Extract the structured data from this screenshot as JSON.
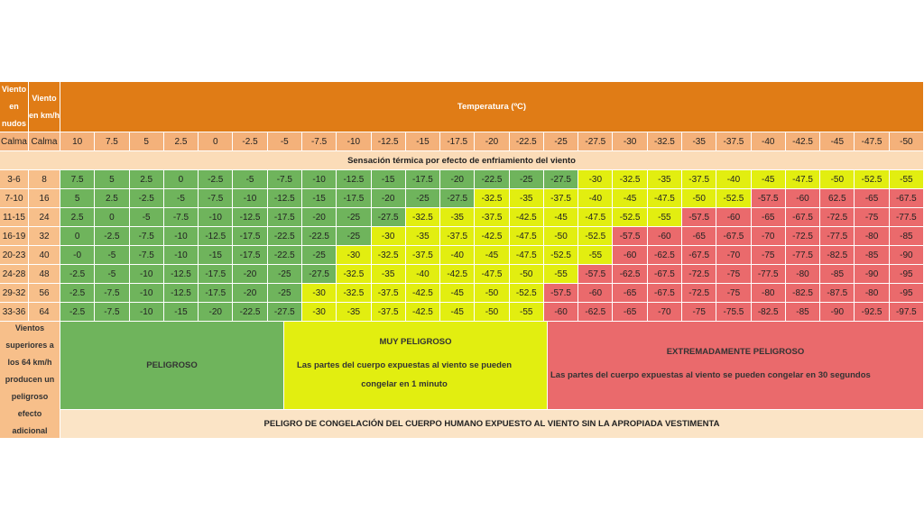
{
  "headers": {
    "knots": "Viento en nudos",
    "kmh": "Viento en km/h",
    "temperature": "Temperatura (ºC)",
    "subtitle": "Sensación térmica por efecto de enfriamiento del viento"
  },
  "calm": {
    "knots": "Calma",
    "kmh": "Calma"
  },
  "temperatures": [
    "10",
    "7.5",
    "5",
    "2.5",
    "0",
    "-2.5",
    "-5",
    "-7.5",
    "-10",
    "-12.5",
    "-15",
    "-17.5",
    "-20",
    "-22.5",
    "-25",
    "-27.5",
    "-30",
    "-32.5",
    "-35",
    "-37.5",
    "-40",
    "-42.5",
    "-45",
    "-47.5",
    "-50"
  ],
  "rows": [
    {
      "knots": "3-6",
      "kmh": "8",
      "values": [
        "7.5",
        "5",
        "2.5",
        "0",
        "-2.5",
        "-5",
        "-7.5",
        "-10",
        "-12.5",
        "-15",
        "-17.5",
        "-20",
        "-22.5",
        "-25",
        "-27.5",
        "-30",
        "-32.5",
        "-35",
        "-37.5",
        "-40",
        "-45",
        "-47.5",
        "-50",
        "-52.5",
        "-55"
      ],
      "levels": [
        1,
        1,
        1,
        1,
        1,
        1,
        1,
        1,
        1,
        1,
        1,
        1,
        1,
        1,
        1,
        2,
        2,
        2,
        2,
        2,
        2,
        2,
        2,
        2,
        2
      ]
    },
    {
      "knots": "7-10",
      "kmh": "16",
      "values": [
        "5",
        "2.5",
        "-2.5",
        "-5",
        "-7.5",
        "-10",
        "-12.5",
        "-15",
        "-17.5",
        "-20",
        "-25",
        "-27.5",
        "-32.5",
        "-35",
        "-37.5",
        "-40",
        "-45",
        "-47.5",
        "-50",
        "-52.5",
        "-57.5",
        "-60",
        "62.5",
        "-65",
        "-67.5"
      ],
      "levels": [
        1,
        1,
        1,
        1,
        1,
        1,
        1,
        1,
        1,
        1,
        1,
        1,
        2,
        2,
        2,
        2,
        2,
        2,
        2,
        2,
        3,
        3,
        3,
        3,
        3
      ]
    },
    {
      "knots": "11-15",
      "kmh": "24",
      "values": [
        "2.5",
        "0",
        "-5",
        "-7.5",
        "-10",
        "-12.5",
        "-17.5",
        "-20",
        "-25",
        "-27.5",
        "-32.5",
        "-35",
        "-37.5",
        "-42.5",
        "-45",
        "-47.5",
        "-52.5",
        "-55",
        "-57.5",
        "-60",
        "-65",
        "-67.5",
        "-72.5",
        "-75",
        "-77.5"
      ],
      "levels": [
        1,
        1,
        1,
        1,
        1,
        1,
        1,
        1,
        1,
        1,
        2,
        2,
        2,
        2,
        2,
        2,
        2,
        2,
        3,
        3,
        3,
        3,
        3,
        3,
        3
      ]
    },
    {
      "knots": "16-19",
      "kmh": "32",
      "values": [
        "0",
        "-2.5",
        "-7.5",
        "-10",
        "-12.5",
        "-17.5",
        "-22.5",
        "-22.5",
        "-25",
        "-30",
        "-35",
        "-37.5",
        "-42.5",
        "-47.5",
        "-50",
        "-52.5",
        "-57.5",
        "-60",
        "-65",
        "-67.5",
        "-70",
        "-72.5",
        "-77.5",
        "-80",
        "-85"
      ],
      "levels": [
        1,
        1,
        1,
        1,
        1,
        1,
        1,
        1,
        1,
        2,
        2,
        2,
        2,
        2,
        2,
        2,
        3,
        3,
        3,
        3,
        3,
        3,
        3,
        3,
        3
      ]
    },
    {
      "knots": "20-23",
      "kmh": "40",
      "values": [
        "-0",
        "-5",
        "-7.5",
        "-10",
        "-15",
        "-17.5",
        "-22.5",
        "-25",
        "-30",
        "-32.5",
        "-37.5",
        "-40",
        "-45",
        "-47.5",
        "-52.5",
        "-55",
        "-60",
        "-62.5",
        "-67.5",
        "-70",
        "-75",
        "-77.5",
        "-82.5",
        "-85",
        "-90"
      ],
      "levels": [
        1,
        1,
        1,
        1,
        1,
        1,
        1,
        1,
        2,
        2,
        2,
        2,
        2,
        2,
        2,
        2,
        3,
        3,
        3,
        3,
        3,
        3,
        3,
        3,
        3
      ]
    },
    {
      "knots": "24-28",
      "kmh": "48",
      "values": [
        "-2.5",
        "-5",
        "-10",
        "-12.5",
        "-17.5",
        "-20",
        "-25",
        "-27.5",
        "-32.5",
        "-35",
        "-40",
        "-42.5",
        "-47.5",
        "-50",
        "-55",
        "-57.5",
        "-62.5",
        "-67.5",
        "-72.5",
        "-75",
        "-77.5",
        "-80",
        "-85",
        "-90",
        "-95"
      ],
      "levels": [
        1,
        1,
        1,
        1,
        1,
        1,
        1,
        1,
        2,
        2,
        2,
        2,
        2,
        2,
        2,
        3,
        3,
        3,
        3,
        3,
        3,
        3,
        3,
        3,
        3
      ]
    },
    {
      "knots": "29-32",
      "kmh": "56",
      "values": [
        "-2.5",
        "-7.5",
        "-10",
        "-12.5",
        "-17.5",
        "-20",
        "-25",
        "-30",
        "-32.5",
        "-37.5",
        "-42.5",
        "-45",
        "-50",
        "-52.5",
        "-57.5",
        "-60",
        "-65",
        "-67.5",
        "-72.5",
        "-75",
        "-80",
        "-82.5",
        "-87.5",
        "-80",
        "-95"
      ],
      "levels": [
        1,
        1,
        1,
        1,
        1,
        1,
        1,
        2,
        2,
        2,
        2,
        2,
        2,
        2,
        3,
        3,
        3,
        3,
        3,
        3,
        3,
        3,
        3,
        3,
        3
      ]
    },
    {
      "knots": "33-36",
      "kmh": "64",
      "values": [
        "-2.5",
        "-7.5",
        "-10",
        "-15",
        "-20",
        "-22.5",
        "-27.5",
        "-30",
        "-35",
        "-37.5",
        "-42.5",
        "-45",
        "-50",
        "-55",
        "-60",
        "-62.5",
        "-65",
        "-70",
        "-75",
        "-75.5",
        "-82.5",
        "-85",
        "-90",
        "-92.5",
        "-97.5"
      ],
      "levels": [
        1,
        1,
        1,
        1,
        1,
        1,
        1,
        2,
        2,
        2,
        2,
        2,
        2,
        2,
        3,
        3,
        3,
        3,
        3,
        3,
        3,
        3,
        3,
        3,
        3
      ]
    }
  ],
  "note": "Vientos superiores a los 64 km/h producen un peligroso efecto adicional",
  "zones": {
    "green": {
      "title": "PELIGROSO"
    },
    "yellow": {
      "title": "MUY PELIGROSO",
      "desc": "Las partes del cuerpo expuestas al viento se pueden congelar en 1 minuto"
    },
    "red": {
      "title": "EXTREMADAMENTE PELIGROSO",
      "desc": "Las partes del cuerpo expuestas al viento se pueden congelar en 30 segundos"
    }
  },
  "footer": "PELIGRO DE CONGELACIÓN DEL CUERPO HUMANO EXPUESTO AL VIENTO SIN LA APROPIADA VESTIMENTA",
  "colors": {
    "header_orange": "#e07c16",
    "temp_row": "#f4b17a",
    "subtitle_bg": "#fbdcb8",
    "footer_bg": "#fbe4c6",
    "label_bg": "#f7bf8a",
    "green": "#6fb45c",
    "yellow": "#e2ee10",
    "red": "#ea6a6c"
  }
}
